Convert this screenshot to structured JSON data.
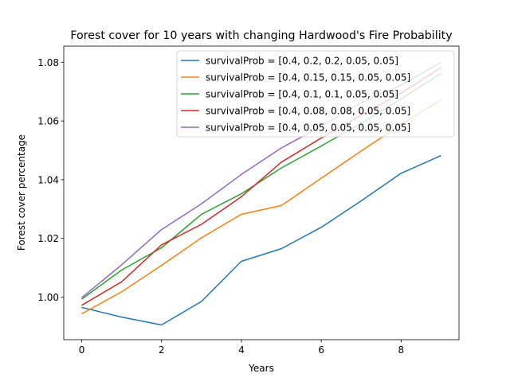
{
  "chart_data": {
    "type": "line",
    "title": "Forest cover for 10 years with changing Hardwood's Fire Probability",
    "xlabel": "Years",
    "ylabel": "Forest cover percentage",
    "x": [
      0,
      1,
      2,
      3,
      4,
      5,
      6,
      7,
      8,
      9
    ],
    "xlim": [
      -0.45,
      9.45
    ],
    "ylim": [
      0.9855,
      1.0855
    ],
    "xticks": [
      0,
      2,
      4,
      6,
      8
    ],
    "xtick_labels": [
      "0",
      "2",
      "4",
      "6",
      "8"
    ],
    "yticks": [
      1.0,
      1.02,
      1.04,
      1.06,
      1.08
    ],
    "ytick_labels": [
      "1.00",
      "1.02",
      "1.04",
      "1.06",
      "1.08"
    ],
    "grid": false,
    "legend_position": "upper right",
    "series": [
      {
        "name": "survivalProb = [0.4, 0.2, 0.2, 0.05, 0.05]",
        "color": "#1f77b4",
        "values": [
          0.9965,
          0.9932,
          0.9905,
          0.9985,
          1.0122,
          1.0165,
          1.0238,
          1.0328,
          1.0422,
          1.0482
        ]
      },
      {
        "name": "survivalProb = [0.4, 0.15, 0.15, 0.05, 0.05]",
        "color": "#ff7f0e",
        "values": [
          0.9943,
          1.0018,
          1.0108,
          1.0202,
          1.0282,
          1.0312,
          1.0405,
          1.0498,
          1.0588,
          1.0672
        ]
      },
      {
        "name": "survivalProb = [0.4, 0.1, 0.1, 0.05, 0.05]",
        "color": "#2ca02c",
        "values": [
          0.9993,
          1.0092,
          1.0168,
          1.0282,
          1.0352,
          1.044,
          1.0515,
          1.0592,
          1.0675,
          1.0762
        ]
      },
      {
        "name": "survivalProb = [0.4, 0.08, 0.08, 0.05, 0.05]",
        "color": "#d62728",
        "values": [
          0.9972,
          1.0052,
          1.0178,
          1.0248,
          1.0342,
          1.046,
          1.0542,
          1.062,
          1.0695,
          1.0782
        ]
      },
      {
        "name": "survivalProb = [0.4, 0.05, 0.05, 0.05, 0.05]",
        "color": "#9467bd",
        "values": [
          0.9998,
          1.011,
          1.023,
          1.0318,
          1.0418,
          1.0508,
          1.0582,
          1.0662,
          1.0722,
          1.08
        ]
      }
    ]
  }
}
